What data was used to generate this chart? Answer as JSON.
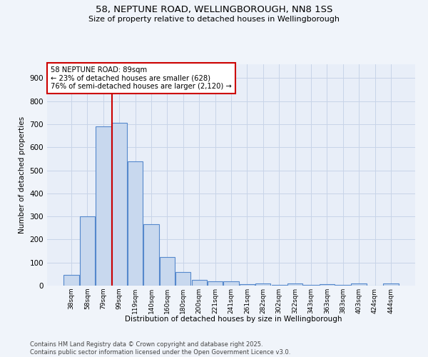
{
  "title_line1": "58, NEPTUNE ROAD, WELLINGBOROUGH, NN8 1SS",
  "title_line2": "Size of property relative to detached houses in Wellingborough",
  "xlabel": "Distribution of detached houses by size in Wellingborough",
  "ylabel": "Number of detached properties",
  "categories": [
    "38sqm",
    "58sqm",
    "79sqm",
    "99sqm",
    "119sqm",
    "140sqm",
    "160sqm",
    "180sqm",
    "200sqm",
    "221sqm",
    "241sqm",
    "261sqm",
    "282sqm",
    "302sqm",
    "322sqm",
    "343sqm",
    "363sqm",
    "383sqm",
    "403sqm",
    "424sqm",
    "444sqm"
  ],
  "bar_heights": [
    45,
    300,
    690,
    705,
    540,
    265,
    125,
    58,
    25,
    18,
    20,
    5,
    8,
    3,
    8,
    2,
    5,
    2,
    8,
    0,
    8
  ],
  "bar_color": "#c8d8ee",
  "bar_edge_color": "#5588cc",
  "grid_color": "#c8d4e8",
  "bg_color": "#e8eef8",
  "fig_bg_color": "#f0f4fa",
  "property_line_x": 2.55,
  "property_line_color": "#cc0000",
  "annotation_text": "58 NEPTUNE ROAD: 89sqm\n← 23% of detached houses are smaller (628)\n76% of semi-detached houses are larger (2,120) →",
  "annotation_box_color": "#cc0000",
  "ylim": [
    0,
    960
  ],
  "yticks": [
    0,
    100,
    200,
    300,
    400,
    500,
    600,
    700,
    800,
    900
  ],
  "footer_line1": "Contains HM Land Registry data © Crown copyright and database right 2025.",
  "footer_line2": "Contains public sector information licensed under the Open Government Licence v3.0."
}
